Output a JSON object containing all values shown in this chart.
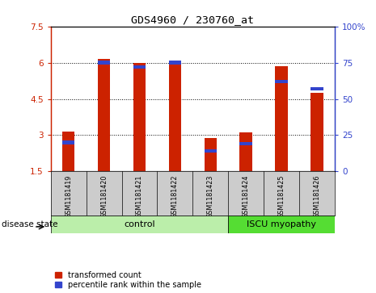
{
  "title": "GDS4960 / 230760_at",
  "samples": [
    "GSM1181419",
    "GSM1181420",
    "GSM1181421",
    "GSM1181422",
    "GSM1181423",
    "GSM1181424",
    "GSM1181425",
    "GSM1181426"
  ],
  "transformed_counts": [
    3.15,
    6.15,
    5.97,
    6.08,
    2.88,
    3.1,
    5.85,
    4.75
  ],
  "percentile_ranks": [
    20,
    75,
    72,
    75,
    14,
    19,
    62,
    57
  ],
  "bar_bottom": 1.5,
  "ylim_left": [
    1.5,
    7.5
  ],
  "ylim_right": [
    0,
    100
  ],
  "yticks_left": [
    1.5,
    3.0,
    4.5,
    6.0,
    7.5
  ],
  "yticks_right": [
    0,
    25,
    50,
    75,
    100
  ],
  "ytick_labels_left": [
    "1.5",
    "3",
    "4.5",
    "6",
    "7.5"
  ],
  "ytick_labels_right": [
    "0",
    "25",
    "50",
    "75",
    "100%"
  ],
  "red_color": "#cc2200",
  "blue_color": "#3344cc",
  "bar_width": 0.35,
  "control_label": "control",
  "iscu_label": "ISCU myopathy",
  "disease_state_label": "disease state",
  "legend_red": "transformed count",
  "legend_blue": "percentile rank within the sample",
  "control_color": "#bbeeaa",
  "iscu_color": "#55dd33",
  "label_bg_color": "#cccccc",
  "bar_bg_color": "#ffffff",
  "blue_bar_height": 0.15
}
